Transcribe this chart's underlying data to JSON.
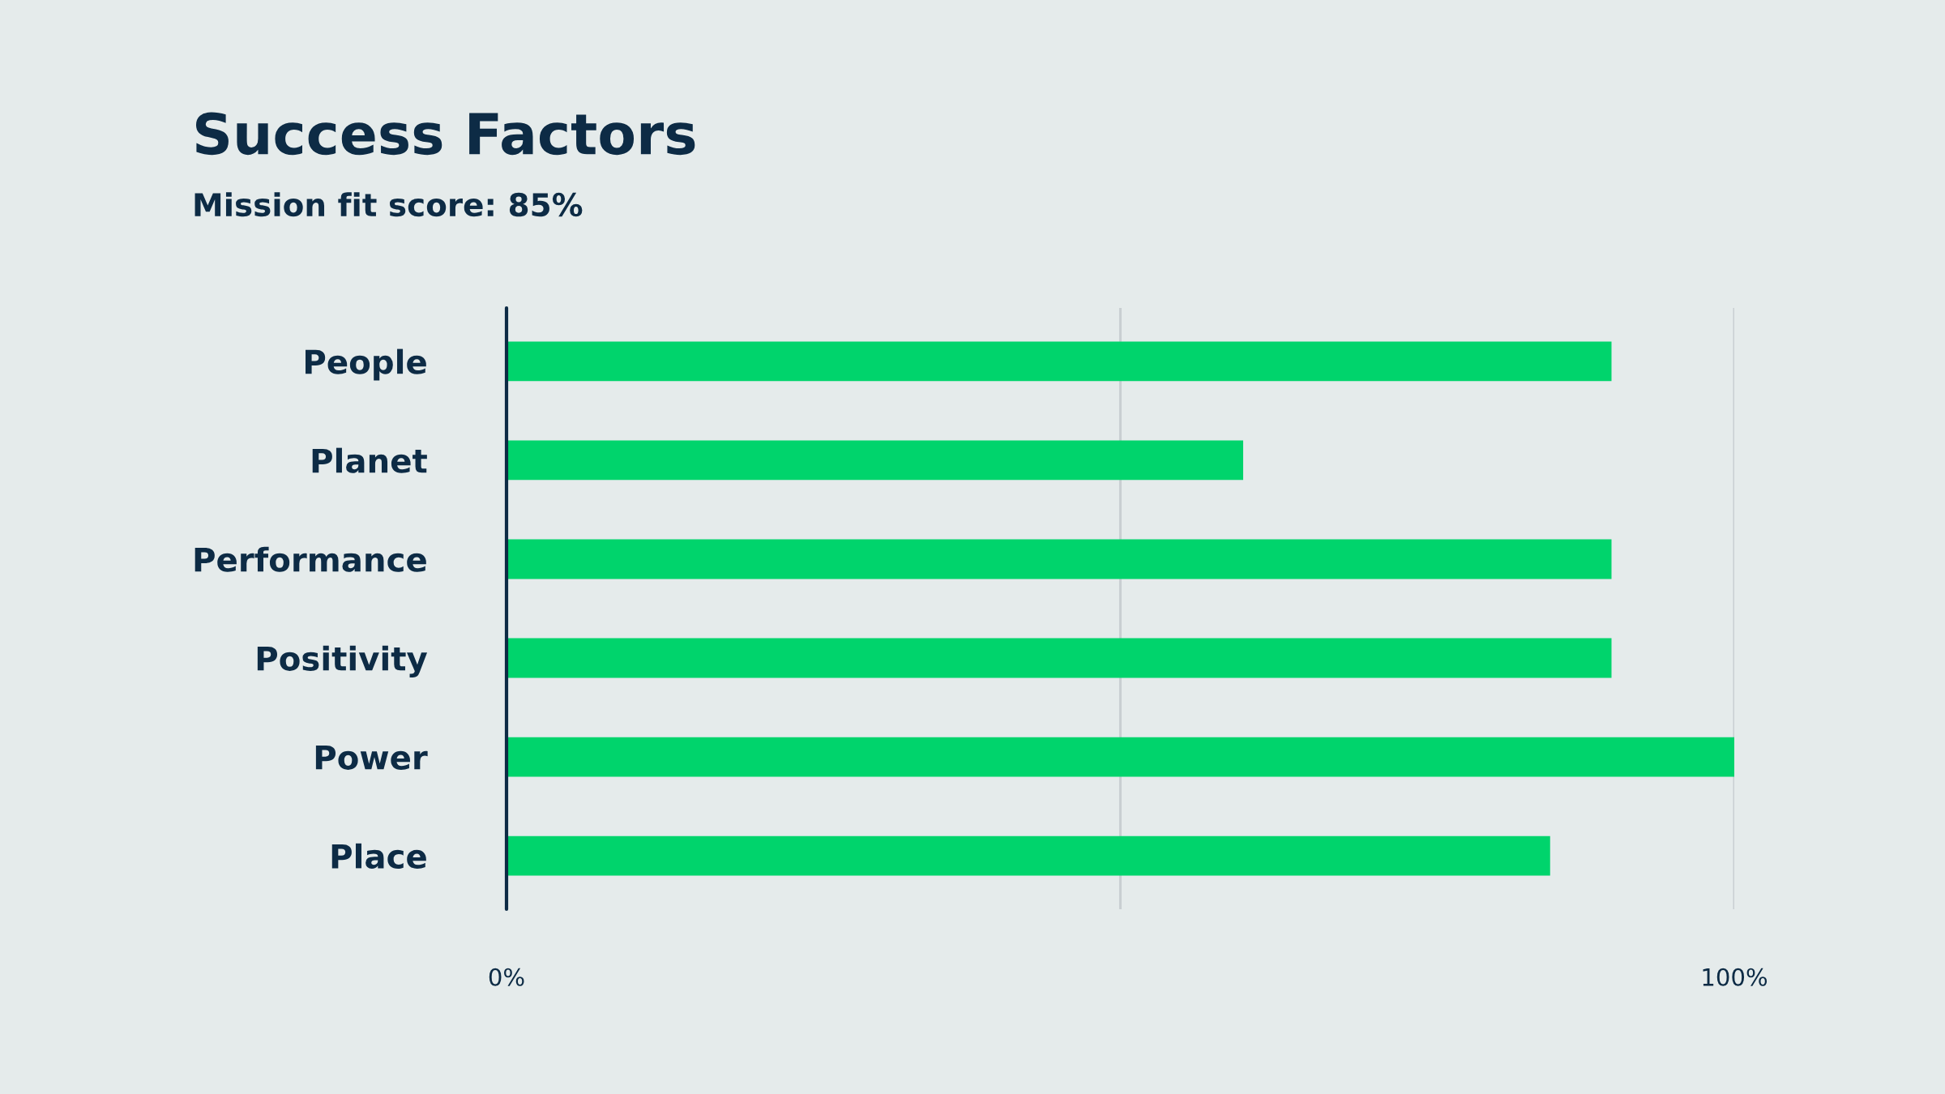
{
  "chart_data": {
    "type": "bar",
    "orientation": "horizontal",
    "title": "Success Factors",
    "subtitle": "Mission fit score: 85%",
    "categories": [
      "People",
      "Planet",
      "Performance",
      "Positivity",
      "Power",
      "Place"
    ],
    "values": [
      90,
      60,
      90,
      90,
      100,
      85
    ],
    "color": "#00d46c",
    "xlim": [
      0,
      100
    ],
    "xticks": [
      {
        "value": 0,
        "label": "0%"
      },
      {
        "value": 50,
        "label": null
      },
      {
        "value": 100,
        "label": "100%"
      }
    ],
    "grid": "x"
  }
}
